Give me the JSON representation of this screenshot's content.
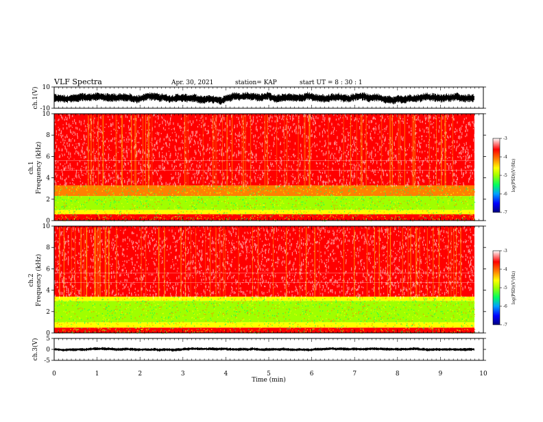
{
  "header": {
    "title": "VLF Spectra",
    "date": "Apr. 30, 2021",
    "station": "station= KAP",
    "start": "start  UT =   8 : 30 : 1"
  },
  "chart_data": {
    "type": "heatmap",
    "x_axis": {
      "label": "Time  (min)",
      "range": [
        0,
        10
      ],
      "ticks": [
        "0",
        "1",
        "2",
        "3",
        "4",
        "5",
        "6",
        "7",
        "8",
        "9",
        "10"
      ]
    },
    "panels": [
      {
        "id": "ch1_waveform",
        "type": "line",
        "ylabel": "ch.1(V)",
        "ylim": [
          -10,
          10
        ],
        "ticks": [
          "10",
          "-10"
        ],
        "color": "#000000"
      },
      {
        "id": "ch1_spectrogram",
        "type": "heatmap",
        "ylabel_line1": "ch.1",
        "ylabel_line2": "Frequency  (kHz)",
        "ylim": [
          0,
          10
        ],
        "ticks": [
          "0",
          "2",
          "4",
          "6",
          "8",
          "10"
        ],
        "bands": [
          {
            "from_khz": 0,
            "to_khz": 0.6,
            "level": -3.5
          },
          {
            "from_khz": 0.6,
            "to_khz": 1.0,
            "level": -4.6
          },
          {
            "from_khz": 1.0,
            "to_khz": 2.3,
            "level": -5.0
          },
          {
            "from_khz": 2.3,
            "to_khz": 3.3,
            "level": -4.2
          },
          {
            "from_khz": 3.3,
            "to_khz": 10,
            "level": -3.6
          }
        ]
      },
      {
        "id": "ch2_spectrogram",
        "type": "heatmap",
        "ylabel_line1": "ch.2",
        "ylabel_line2": "Frequency  (kHz)",
        "ylim": [
          0,
          10
        ],
        "ticks": [
          "0",
          "2",
          "4",
          "6",
          "8",
          "10"
        ],
        "bands": [
          {
            "from_khz": 0,
            "to_khz": 0.5,
            "level": -3.6
          },
          {
            "from_khz": 0.5,
            "to_khz": 1.0,
            "level": -4.4
          },
          {
            "from_khz": 1.0,
            "to_khz": 3.0,
            "level": -5.2
          },
          {
            "from_khz": 3.0,
            "to_khz": 3.4,
            "level": -4.4
          },
          {
            "from_khz": 3.4,
            "to_khz": 10,
            "level": -3.6
          }
        ]
      },
      {
        "id": "ch3_waveform",
        "type": "line",
        "ylabel": "ch.3(V)",
        "ylim": [
          -5,
          5
        ],
        "ticks": [
          "5",
          "0",
          "-5"
        ],
        "color": "#000000"
      }
    ],
    "colorbars": [
      {
        "label": "log(PSD)(V²/Hz)",
        "range": [
          -7,
          -3
        ],
        "ticks": [
          "-3",
          "-4",
          "-5",
          "-6",
          "-7"
        ]
      },
      {
        "label": "log(PSD)(V²/Hz)",
        "range": [
          -7,
          -3
        ],
        "ticks": [
          "-3",
          "-4",
          "-5",
          "-6",
          "-7"
        ]
      }
    ],
    "colormap": [
      "#000080",
      "#0000ff",
      "#00a0ff",
      "#00ff60",
      "#a0ff00",
      "#ffff00",
      "#ff8000",
      "#ff0000",
      "#ffffff"
    ]
  }
}
